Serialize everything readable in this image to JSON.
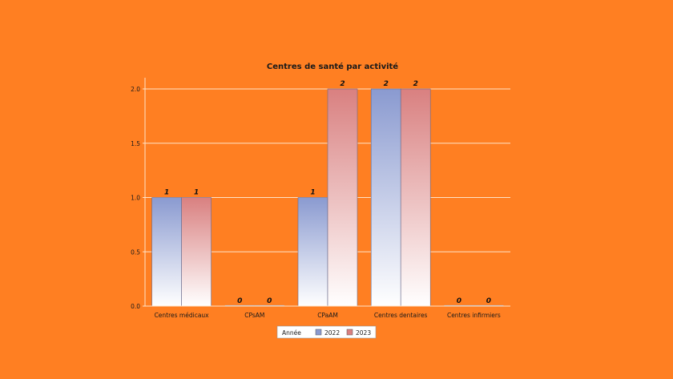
{
  "chart_data": {
    "type": "bar",
    "title": "Centres de santé par activité",
    "categories": [
      "Centres médicaux",
      "CPsAM",
      "CPaAM",
      "Centres dentaires",
      "Centres infirmiers"
    ],
    "series": [
      {
        "name": "2022",
        "values": [
          1,
          0,
          1,
          2,
          0
        ],
        "color": "#8a9ad0"
      },
      {
        "name": "2023",
        "values": [
          1,
          0,
          2,
          2,
          0
        ],
        "color": "#d98080"
      }
    ],
    "legend_title": "Année",
    "legend_position": "bottom-center",
    "ylim": [
      0,
      2
    ],
    "yticks": [
      "0.0",
      "0.5",
      "1.0",
      "1.5",
      "2.0"
    ],
    "data_labels": [
      "1",
      "0",
      "1",
      "2",
      "0",
      "1",
      "0",
      "2",
      "2",
      "0"
    ],
    "grid": true,
    "background": "#ff7f22"
  }
}
